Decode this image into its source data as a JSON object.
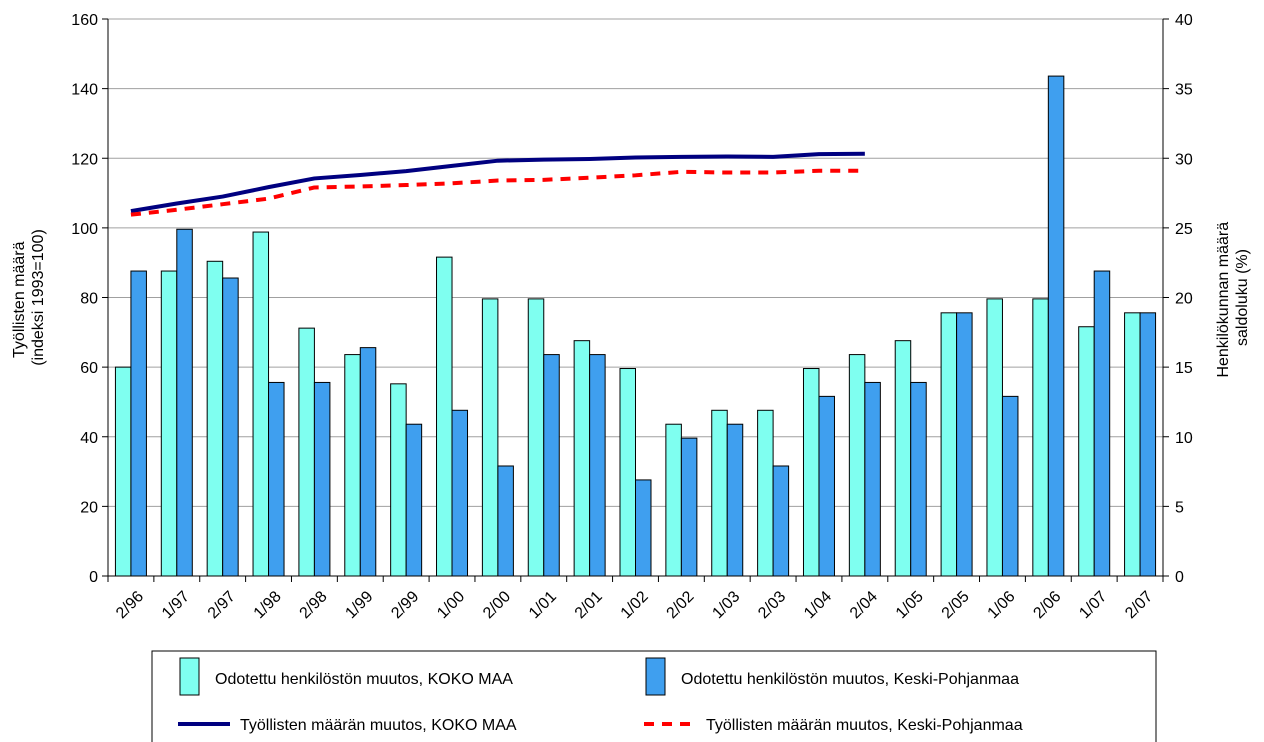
{
  "chart_data": {
    "type": "bar",
    "categories": [
      "2/96",
      "1/97",
      "2/97",
      "1/98",
      "2/98",
      "1/99",
      "2/99",
      "1/00",
      "2/00",
      "1/01",
      "2/01",
      "1/02",
      "2/02",
      "1/03",
      "2/03",
      "1/04",
      "2/04",
      "1/05",
      "2/05",
      "1/06",
      "2/06",
      "1/07",
      "2/07"
    ],
    "y_left": {
      "label_line1": "Työllisten määrä",
      "label_line2": "(indeksi 1993=100)",
      "range": [
        0,
        160
      ],
      "ticks": [
        0,
        20,
        40,
        60,
        80,
        100,
        120,
        140,
        160
      ]
    },
    "y_right": {
      "label_line1": "Henkilökunnan määrä",
      "label_line2": "saldoluku (%)",
      "range": [
        0,
        40
      ],
      "ticks": [
        0,
        5,
        10,
        15,
        20,
        25,
        30,
        35,
        40
      ]
    },
    "grid": true,
    "legend_position": "bottom",
    "bar_series": [
      {
        "name": "Odotettu henkilöstön muutos, KOKO MAA",
        "axis": "right",
        "color": "#7ffff0",
        "values": [
          15,
          21.9,
          22.6,
          24.7,
          17.8,
          15.9,
          13.8,
          22.9,
          19.9,
          19.9,
          16.9,
          14.9,
          10.9,
          11.9,
          11.9,
          14.9,
          15.9,
          16.9,
          18.9,
          19.9,
          19.9,
          17.9,
          18.9
        ]
      },
      {
        "name": "Odotettu henkilöstön muutos, Keski-Pohjanmaa",
        "axis": "right",
        "color": "#3f9fef",
        "values": [
          21.9,
          24.9,
          21.4,
          13.9,
          13.9,
          16.4,
          10.9,
          11.9,
          7.9,
          15.9,
          15.9,
          6.9,
          9.9,
          10.9,
          7.9,
          12.9,
          13.9,
          13.9,
          18.9,
          12.9,
          35.9,
          21.9,
          18.9
        ]
      }
    ],
    "line_series": [
      {
        "name": "Työllisten määrän muutos, KOKO MAA",
        "axis": "left",
        "color": "#000080",
        "dashed": false,
        "values": [
          104.8,
          107,
          109,
          111.7,
          114.2,
          115.2,
          116.3,
          117.8,
          119.3,
          119.6,
          119.8,
          120.2,
          120.4,
          120.5,
          120.4,
          121.2,
          121.3,
          null,
          null,
          null,
          null,
          null,
          null
        ]
      },
      {
        "name": "Työllisten määrän muutos, Keski-Pohjanmaa",
        "axis": "left",
        "color": "#ff0000",
        "dashed": true,
        "values": [
          103.8,
          105.2,
          106.8,
          108.4,
          111.6,
          111.9,
          112.3,
          112.8,
          113.6,
          113.8,
          114.4,
          115.1,
          116.1,
          115.9,
          115.9,
          116.4,
          116.4,
          null,
          null,
          null,
          null,
          null,
          null
        ]
      }
    ]
  }
}
